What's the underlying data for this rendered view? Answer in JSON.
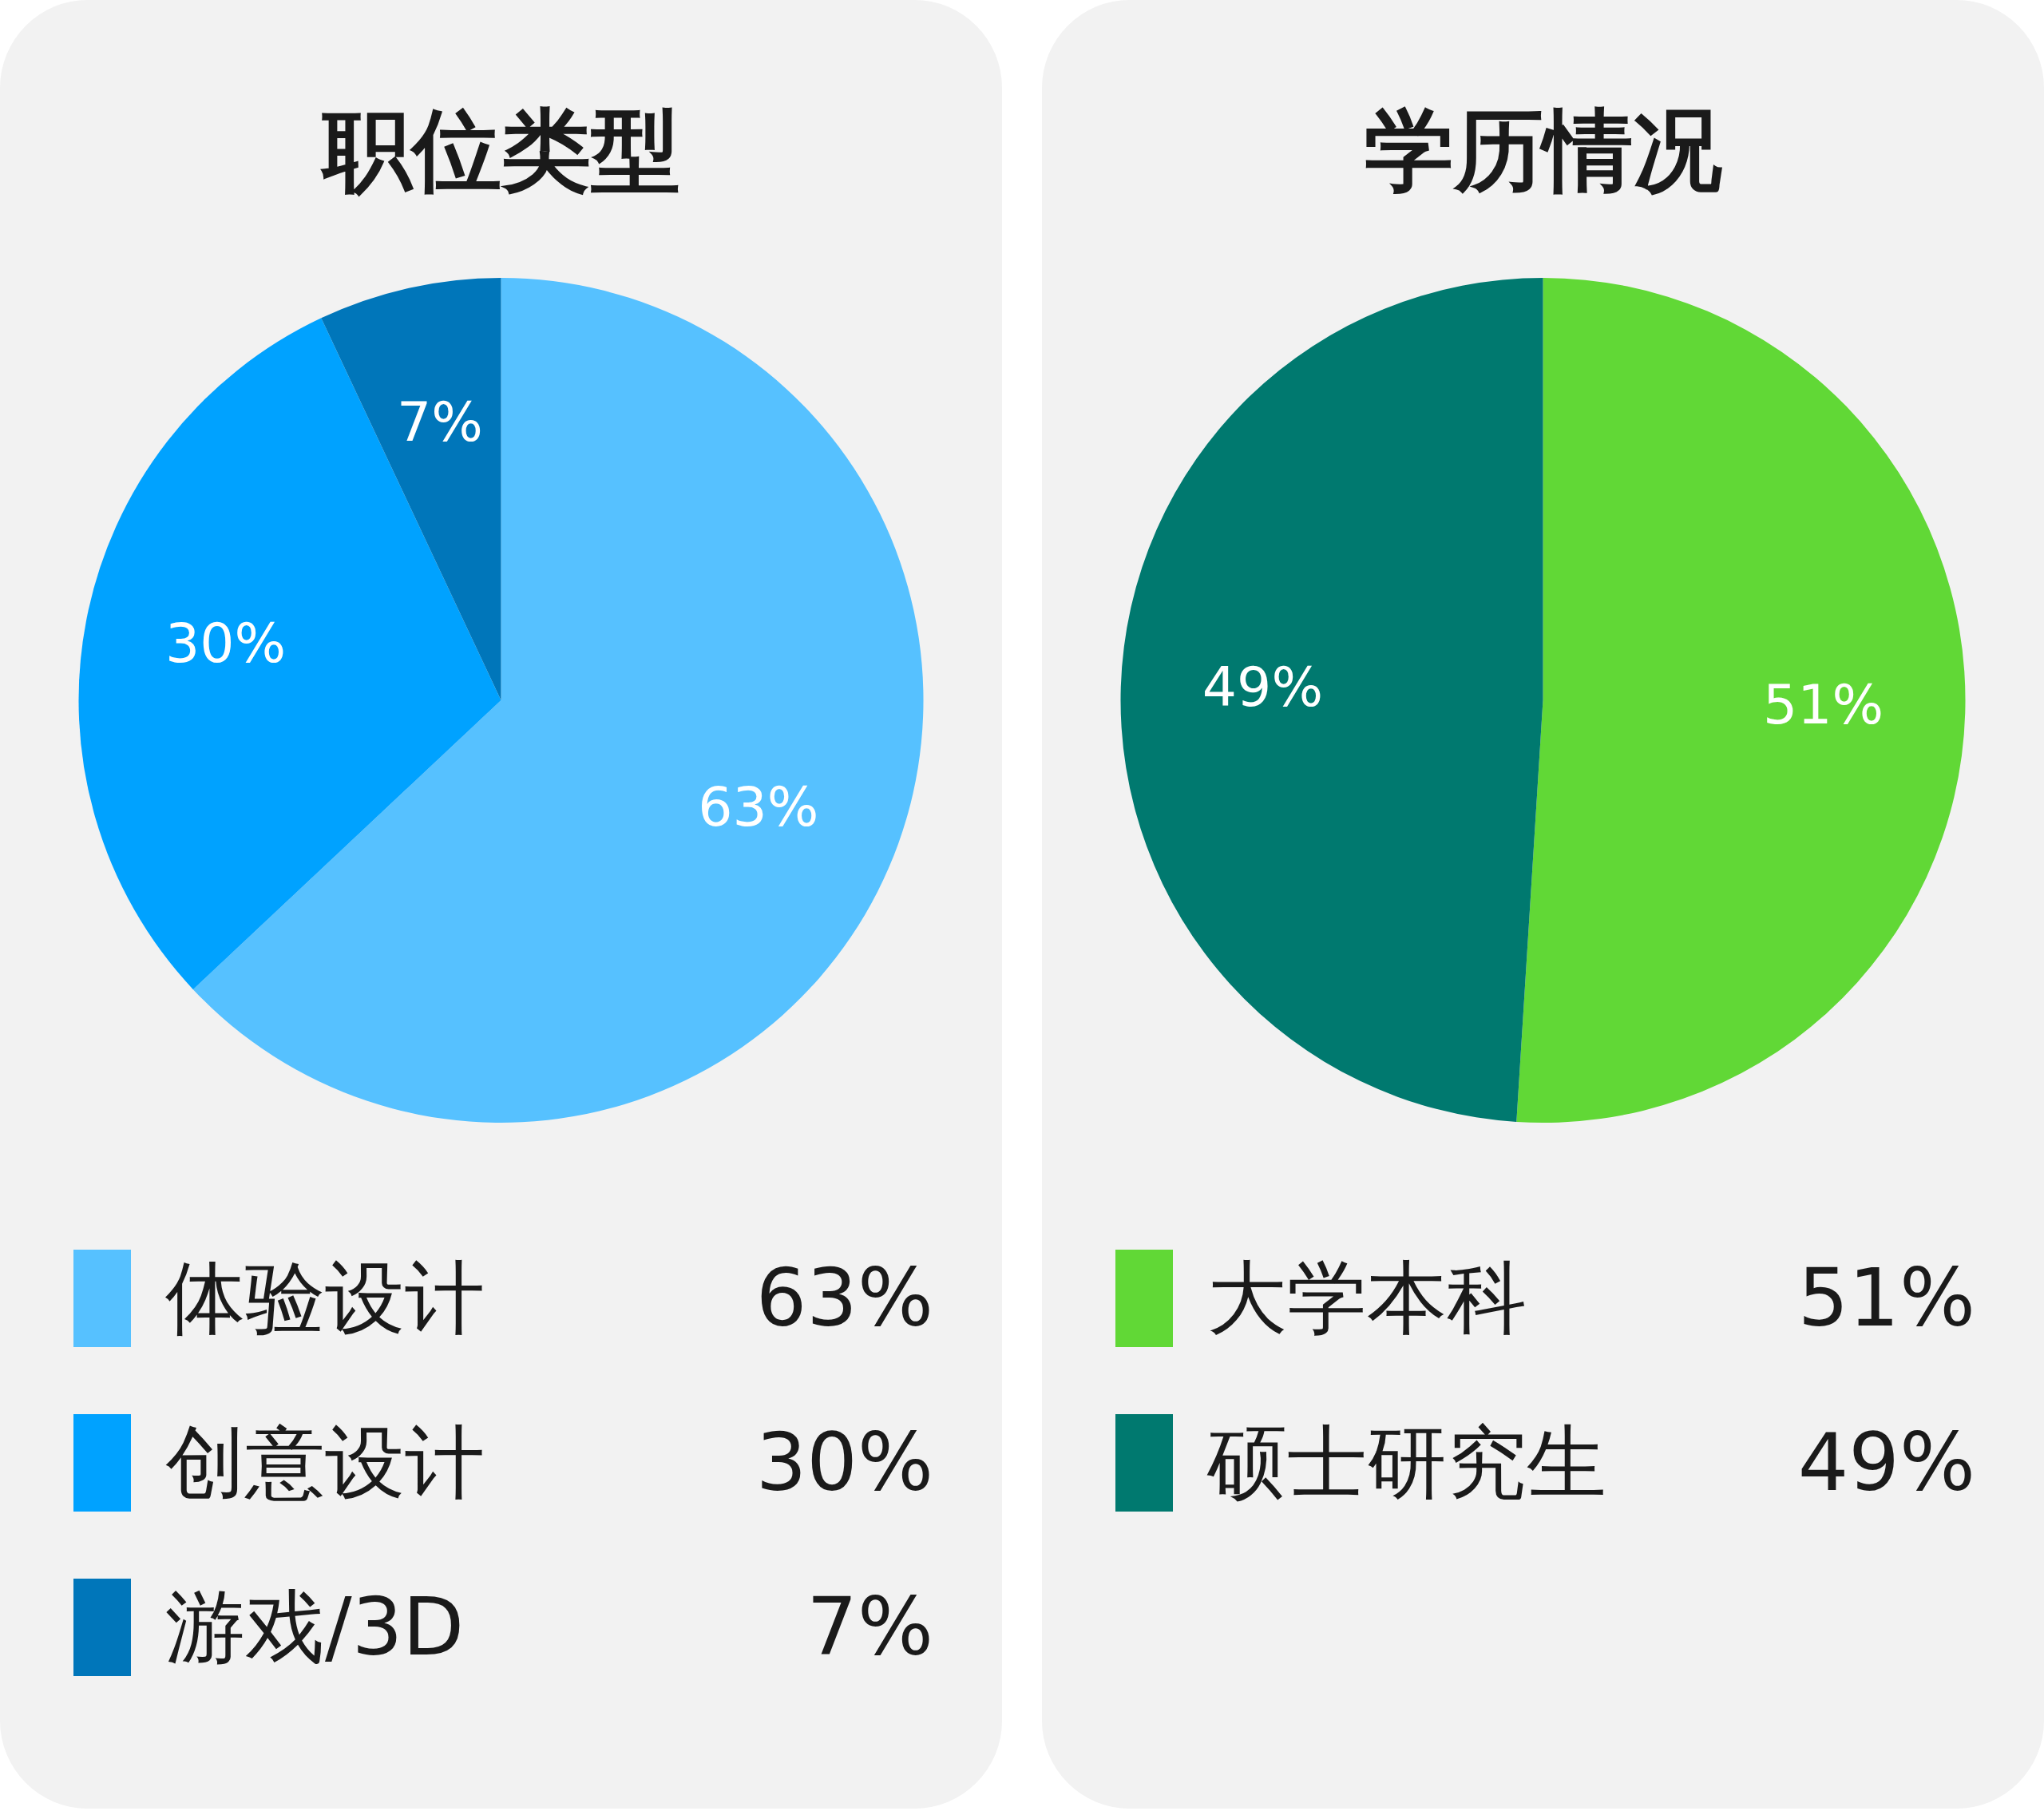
{
  "chart_data": [
    {
      "type": "pie",
      "title": "职位类型",
      "categories": [
        "体验设计",
        "创意设计",
        "游戏/3D"
      ],
      "values": [
        63,
        30,
        7
      ],
      "colors": [
        "#56c1ff",
        "#00a2ff",
        "#0076ba"
      ],
      "value_labels": [
        "63%",
        "30%",
        "7%"
      ],
      "legend": "bottom"
    },
    {
      "type": "pie",
      "title": "学历情况",
      "categories": [
        "大学本科",
        "硕士研究生"
      ],
      "values": [
        51,
        49
      ],
      "colors": [
        "#61d836",
        "#00796f"
      ],
      "value_labels": [
        "51%",
        "49%"
      ],
      "legend": "bottom"
    }
  ]
}
